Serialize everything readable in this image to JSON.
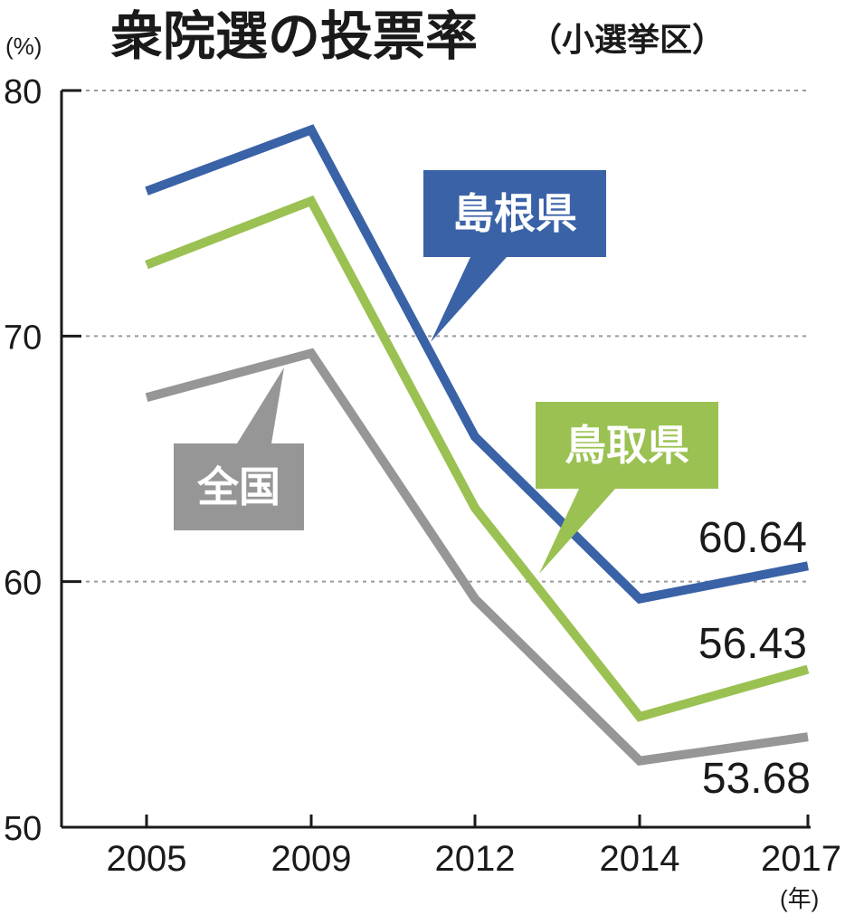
{
  "chart_data": {
    "type": "line",
    "title": "衆院選の投票率",
    "subtitle": "（小選挙区）",
    "y_unit": "(%)",
    "x_unit": "(年)",
    "categories": [
      "2005",
      "2009",
      "2012",
      "2014",
      "2017"
    ],
    "ylim": [
      50,
      80
    ],
    "yticks": [
      "50",
      "60",
      "70",
      "80"
    ],
    "grid": true,
    "series": [
      {
        "name": "島根県",
        "color": "#3a62a7",
        "values": [
          75.9,
          78.4,
          65.9,
          59.3,
          60.64
        ],
        "end_label": "60.64"
      },
      {
        "name": "鳥取県",
        "color": "#9ac152",
        "values": [
          72.9,
          75.5,
          63.0,
          54.5,
          56.43
        ],
        "end_label": "56.43"
      },
      {
        "name": "全国",
        "color": "#969696",
        "values": [
          67.5,
          69.3,
          59.3,
          52.7,
          53.68
        ],
        "end_label": "53.68"
      }
    ]
  }
}
